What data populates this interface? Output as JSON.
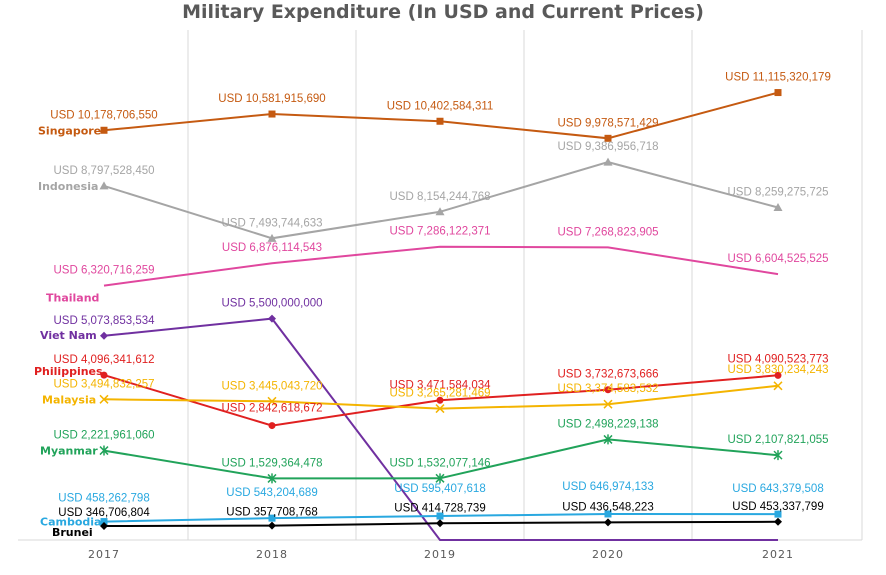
{
  "chart_data": {
    "type": "line",
    "title": "Military Expenditure (In USD and Current Prices)",
    "xlabel": "",
    "ylabel": "",
    "categories": [
      "2017",
      "2018",
      "2019",
      "2020",
      "2021"
    ],
    "ylim": [
      0,
      11800000000
    ],
    "grid": "vertical",
    "legend": "series names at left of each line",
    "series": [
      {
        "name": "Singapore",
        "color": "#c55a11",
        "marker": "square",
        "values": [
          10178706550,
          10581915690,
          10402584311,
          9978571429,
          11115320179
        ],
        "labels": [
          "USD 10,178,706,550",
          "USD 10,581,915,690",
          "USD 10,402,584,311",
          "USD 9,978,571,429",
          "USD 11,115,320,179"
        ]
      },
      {
        "name": "Indonesia",
        "color": "#a5a5a5",
        "marker": "triangle",
        "values": [
          8797528450,
          7493744633,
          8154244768,
          9386956718,
          8259275725
        ],
        "labels": [
          "USD 8,797,528,450",
          "USD 7,493,744,633",
          "USD 8,154,244,768",
          "USD 9,386,956,718",
          "USD 8,259,275,725"
        ]
      },
      {
        "name": "Thailand",
        "color": "#e0479e",
        "marker": "none",
        "values": [
          6320716259,
          6876114543,
          7286122371,
          7268823905,
          6604525525
        ],
        "labels": [
          "USD 6,320,716,259",
          "USD 6,876,114,543",
          "USD 7,286,122,371",
          "USD 7,268,823,905",
          "USD 6,604,525,525"
        ]
      },
      {
        "name": "Viet Nam",
        "color": "#7030a0",
        "marker": "diamond",
        "values": [
          5073853534,
          5500000000,
          0,
          0,
          0
        ],
        "labels": [
          "USD 5,073,853,534",
          "USD 5,500,000,000",
          "",
          "",
          ""
        ]
      },
      {
        "name": "Philippines",
        "color": "#e02020",
        "marker": "circle",
        "values": [
          4096341612,
          2842618672,
          3471584034,
          3732673666,
          4090523773
        ],
        "labels": [
          "USD 4,096,341,612",
          "USD 2,842,618,672",
          "USD 3,471,584,034",
          "USD 3,732,673,666",
          "USD 4,090,523,773"
        ]
      },
      {
        "name": "Malaysia",
        "color": "#f4b400",
        "marker": "x",
        "values": [
          3494832257,
          3445043720,
          3265281469,
          3374583532,
          3830234243
        ],
        "labels": [
          "USD 3,494,832,257",
          "USD 3,445,043,720",
          "USD 3,265,281,469",
          "USD 3,374,583,532",
          "USD 3,830,234,243"
        ]
      },
      {
        "name": "Myanmar",
        "color": "#21a35a",
        "marker": "star",
        "values": [
          2221961060,
          1529364478,
          1532077146,
          2498229138,
          2107821055
        ],
        "labels": [
          "USD 2,221,961,060",
          "USD 1,529,364,478",
          "USD 1,532,077,146",
          "USD 2,498,229,138",
          "USD 2,107,821,055"
        ]
      },
      {
        "name": "Cambodia",
        "color": "#29a8e0",
        "marker": "square",
        "values": [
          458262798,
          543204689,
          595407618,
          646974133,
          643379508
        ],
        "labels": [
          "USD 458,262,798",
          "USD 543,204,689",
          "USD 595,407,618",
          "USD 646,974,133",
          "USD 643,379,508"
        ]
      },
      {
        "name": "Brunei",
        "color": "#000000",
        "marker": "diamond",
        "values": [
          346706804,
          357708768,
          414728739,
          436548223,
          453337799
        ],
        "labels": [
          "USD 346,706,804",
          "USD 357,708,768",
          "USD 414,728,739",
          "USD 436,548,223",
          "USD 453,337,799"
        ]
      }
    ]
  }
}
